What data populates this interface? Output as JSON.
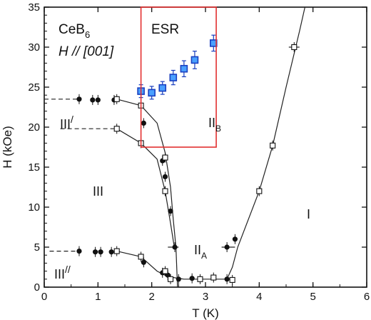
{
  "chart_data": {
    "type": "scatter",
    "title": "",
    "annotation_title": {
      "main": "CeB",
      "sub": "6"
    },
    "annotation_field": {
      "prefix": "H",
      "rest": " // [001]"
    },
    "esr_label": "ESR",
    "xlabel": "T (K)",
    "ylabel": "H (kOe)",
    "xlim": [
      0,
      6
    ],
    "ylim": [
      0,
      35
    ],
    "xticks": [
      "0",
      "1",
      "2",
      "3",
      "4",
      "5",
      "6"
    ],
    "yticks": [
      "0",
      "5",
      "10",
      "15",
      "20",
      "25",
      "30",
      "35"
    ],
    "grid": false,
    "phase_labels": {
      "I": "I",
      "II_A_main": "II",
      "II_A_sub": "A",
      "II_B_main": "II",
      "II_B_sub": "B",
      "III": "III",
      "III_prime": "III",
      "III_double_prime": "III",
      "prime_mark": "/",
      "double_prime_mark": "//"
    },
    "esr_box": {
      "x": [
        1.8,
        3.2
      ],
      "y": [
        17.5,
        35
      ]
    },
    "colors": {
      "esr_fill": "#4aa0ff",
      "esr_edge": "#1a3fbf",
      "box": "#e33030"
    },
    "series": [
      {
        "marker": "filled-circle",
        "points": [
          [
            0.65,
            23.5
          ],
          [
            0.9,
            23.4
          ],
          [
            1.0,
            23.4
          ],
          [
            1.3,
            23.4
          ],
          [
            1.85,
            20.5
          ],
          [
            2.2,
            15.8
          ],
          [
            2.25,
            13.8
          ],
          [
            2.35,
            9.5
          ],
          [
            2.43,
            5.0
          ],
          [
            0.65,
            4.5
          ],
          [
            0.95,
            4.4
          ],
          [
            1.05,
            4.4
          ],
          [
            1.25,
            4.4
          ],
          [
            1.85,
            3.1
          ],
          [
            2.2,
            1.8
          ],
          [
            2.3,
            1.5
          ],
          [
            2.5,
            1.0
          ],
          [
            2.75,
            1.1
          ],
          [
            3.4,
            1.0
          ],
          [
            3.4,
            5.0
          ],
          [
            3.55,
            6.0
          ]
        ]
      },
      {
        "marker": "open-square",
        "points": [
          [
            1.35,
            23.5
          ],
          [
            1.35,
            19.8
          ],
          [
            1.8,
            22.7
          ],
          [
            1.8,
            18.0
          ],
          [
            2.25,
            16.2
          ],
          [
            2.25,
            12.0
          ],
          [
            1.35,
            4.5
          ],
          [
            1.8,
            3.8
          ],
          [
            2.25,
            2.0
          ],
          [
            2.35,
            1.0
          ],
          [
            2.9,
            1.0
          ],
          [
            3.15,
            1.2
          ],
          [
            3.5,
            0.9
          ],
          [
            4.0,
            12.0
          ],
          [
            4.25,
            17.7
          ],
          [
            4.65,
            30.0
          ]
        ]
      },
      {
        "marker": "esr-square",
        "points": [
          [
            1.8,
            24.5
          ],
          [
            2.0,
            24.3
          ],
          [
            2.2,
            24.9
          ],
          [
            2.4,
            26.2
          ],
          [
            2.6,
            27.3
          ],
          [
            2.8,
            28.4
          ],
          [
            3.15,
            30.5
          ]
        ],
        "errors": [
          0.8,
          0.8,
          0.8,
          0.9,
          1.0,
          1.1,
          1.0
        ]
      }
    ],
    "lines": {
      "solid": [
        [
          [
            1.35,
            23.5
          ],
          [
            1.8,
            22.7
          ],
          [
            2.1,
            20.5
          ],
          [
            2.25,
            16.8
          ],
          [
            2.35,
            12.5
          ],
          [
            2.4,
            8.5
          ],
          [
            2.45,
            5.0
          ],
          [
            2.48,
            0.0
          ]
        ],
        [
          [
            1.35,
            19.8
          ],
          [
            1.8,
            18.0
          ],
          [
            2.1,
            16.0
          ],
          [
            2.25,
            12.0
          ],
          [
            2.35,
            8.0
          ],
          [
            2.42,
            5.0
          ]
        ],
        [
          [
            1.35,
            4.5
          ],
          [
            1.8,
            3.8
          ],
          [
            2.1,
            2.0
          ],
          [
            2.3,
            1.3
          ],
          [
            2.6,
            1.0
          ],
          [
            3.0,
            1.0
          ],
          [
            3.4,
            1.0
          ],
          [
            3.5,
            2.5
          ],
          [
            3.6,
            5.0
          ],
          [
            4.0,
            12.0
          ],
          [
            4.25,
            17.7
          ],
          [
            4.5,
            25.0
          ],
          [
            4.75,
            32.0
          ],
          [
            4.85,
            35.0
          ]
        ],
        [
          [
            2.3,
            5.0
          ],
          [
            2.5,
            5.0
          ]
        ],
        [
          [
            3.3,
            5.0
          ],
          [
            3.55,
            5.0
          ]
        ],
        [
          [
            4.55,
            30.0
          ],
          [
            4.75,
            30.0
          ]
        ]
      ],
      "dashed": [
        [
          [
            0.0,
            23.5
          ],
          [
            0.65,
            23.5
          ]
        ],
        [
          [
            0.3,
            19.8
          ],
          [
            1.3,
            19.8
          ]
        ],
        [
          [
            0.1,
            4.5
          ],
          [
            0.65,
            4.5
          ]
        ]
      ]
    }
  }
}
